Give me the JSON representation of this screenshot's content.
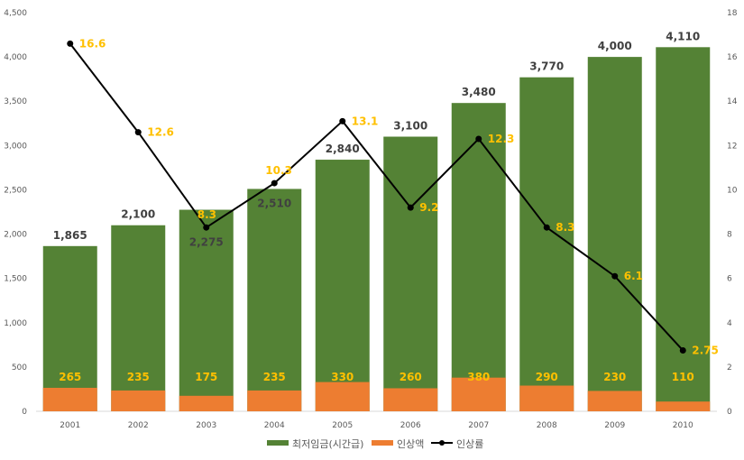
{
  "chart_data": {
    "type": "bar",
    "categories": [
      "2001",
      "2002",
      "2003",
      "2004",
      "2005",
      "2006",
      "2007",
      "2008",
      "2009",
      "2010"
    ],
    "series": [
      {
        "name": "최저임금(시간급)",
        "kind": "bar",
        "axis": "left",
        "color": "#548235",
        "values": [
          1865,
          2100,
          2275,
          2510,
          2840,
          3100,
          3480,
          3770,
          4000,
          4110
        ],
        "labels": [
          "1,865",
          "2,100",
          "2,275",
          "2,510",
          "2,840",
          "3,100",
          "3,480",
          "3,770",
          "4,000",
          "4,110"
        ]
      },
      {
        "name": "인상액",
        "kind": "bar",
        "axis": "left",
        "color": "#ed7d31",
        "values": [
          265,
          235,
          175,
          235,
          330,
          260,
          380,
          290,
          230,
          110
        ],
        "labels": [
          "265",
          "235",
          "175",
          "235",
          "330",
          "260",
          "380",
          "290",
          "230",
          "110"
        ]
      },
      {
        "name": "인상률",
        "kind": "line",
        "axis": "right",
        "color": "#000000",
        "values": [
          16.6,
          12.6,
          8.3,
          10.3,
          13.1,
          9.2,
          12.3,
          8.3,
          6.1,
          2.75
        ],
        "labels": [
          "16.6",
          "12.6",
          "8.3",
          "10.3",
          "13.1",
          "9.2",
          "12.3",
          "8.3",
          "6.1",
          "2.75"
        ]
      }
    ],
    "left_axis": {
      "ylim": [
        0,
        4500
      ],
      "ticks": [
        "0",
        "500",
        "1,000",
        "1,500",
        "2,000",
        "2,500",
        "3,000",
        "3,500",
        "4,000",
        "4,500"
      ]
    },
    "right_axis": {
      "ylim": [
        0,
        18
      ],
      "ticks": [
        "0",
        "2",
        "4",
        "6",
        "8",
        "10",
        "12",
        "14",
        "16",
        "18"
      ]
    },
    "label_color": "#ffc000",
    "legend_position": "bottom"
  }
}
